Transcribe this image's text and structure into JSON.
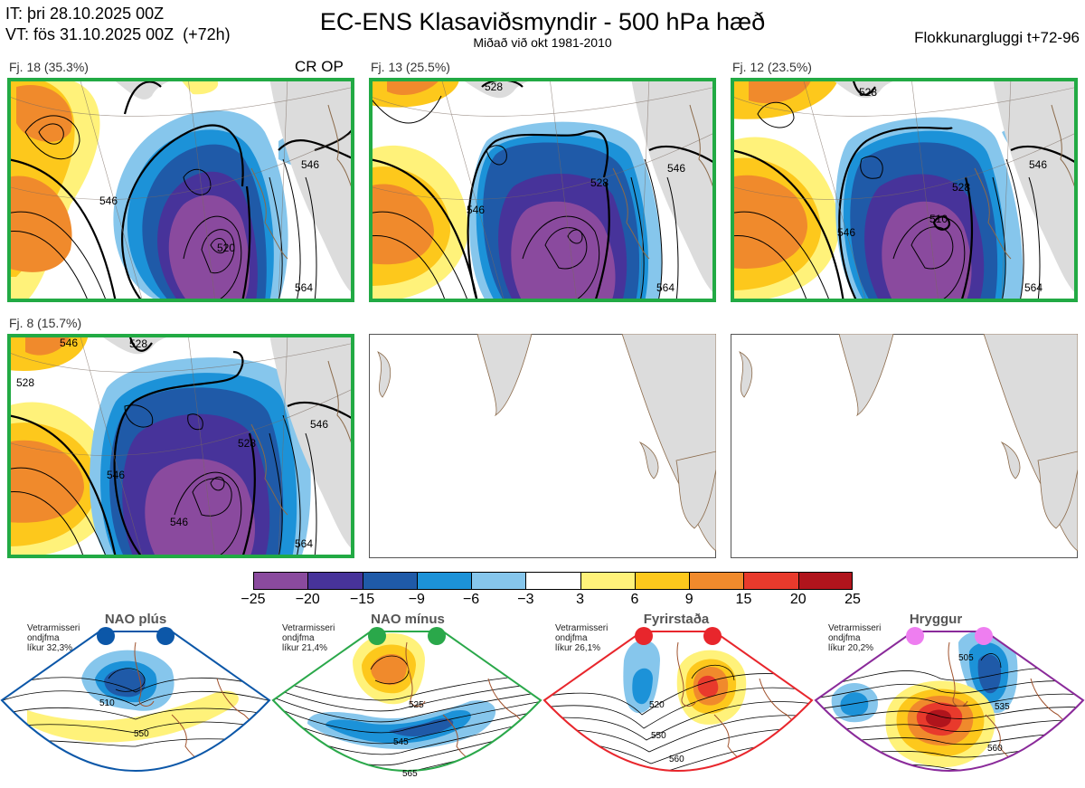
{
  "header": {
    "it": "IT: þri 28.10.2025 00Z",
    "vt": "VT: fös 31.10.2025 00Z  (+72h)",
    "title": "EC-ENS Klasaviðsmyndir - 500 hPa hæð",
    "subtitle": "Miðað við okt 1981-2010",
    "window": "Flokkunargluggi t+72-96"
  },
  "panels": [
    {
      "label": "Fj. 18 (35.3%)",
      "op": "CR OP",
      "contours": [
        "520",
        "546",
        "546",
        "564"
      ],
      "highlight": true
    },
    {
      "label": "Fj. 13 (25.5%)",
      "contours": [
        "528",
        "546",
        "528",
        "546",
        "564"
      ],
      "highlight": true
    },
    {
      "label": "Fj. 12 (23.5%)",
      "contours": [
        "528",
        "546",
        "546",
        "528",
        "510",
        "564"
      ],
      "highlight": true
    },
    {
      "label": "Fj. 8 (15.7%)",
      "contours": [
        "546",
        "528",
        "528",
        "546",
        "546",
        "528",
        "546",
        "564"
      ],
      "highlight": true
    },
    {
      "label": "",
      "highlight": false
    },
    {
      "label": "",
      "highlight": false
    }
  ],
  "colorbar": {
    "ticks": [
      "−25",
      "−20",
      "−15",
      "−9",
      "−6",
      "−3",
      "3",
      "6",
      "9",
      "15",
      "20",
      "25"
    ],
    "colors": [
      "#8a4a9e",
      "#47339a",
      "#1f5aa8",
      "#1c92d8",
      "#86c6ec",
      "#ffffff",
      "#fff27a",
      "#fdc81c",
      "#f08a2c",
      "#e83a2c",
      "#b0141c"
    ]
  },
  "regimes": [
    {
      "name": "NAO plús",
      "info": [
        "Vetrarmisseri",
        "ondjfma",
        "líkur 32,3%"
      ],
      "color": "#0c57a8",
      "dot_color": "#0c57a8",
      "contours": [
        "510",
        "550"
      ]
    },
    {
      "name": "NAO mínus",
      "info": [
        "Vetrarmisseri",
        "ondjfma",
        "líkur 21,4%"
      ],
      "color": "#2aa84a",
      "dot_color": "#2aa84a",
      "contours": [
        "525",
        "545",
        "565"
      ]
    },
    {
      "name": "Fyrirstaða",
      "info": [
        "Vetrarmisseri",
        "ondjfma",
        "líkur 26,1%"
      ],
      "color": "#e8262c",
      "dot_color": "#e8262c",
      "contours": [
        "520",
        "550",
        "560"
      ]
    },
    {
      "name": "Hryggur",
      "info": [
        "Vetrarmisseri",
        "ondjfma",
        "líkur 20,2%"
      ],
      "color": "#8a2a9a",
      "dot_color": "#ee7ef0",
      "contours": [
        "505",
        "535",
        "560"
      ]
    }
  ]
}
